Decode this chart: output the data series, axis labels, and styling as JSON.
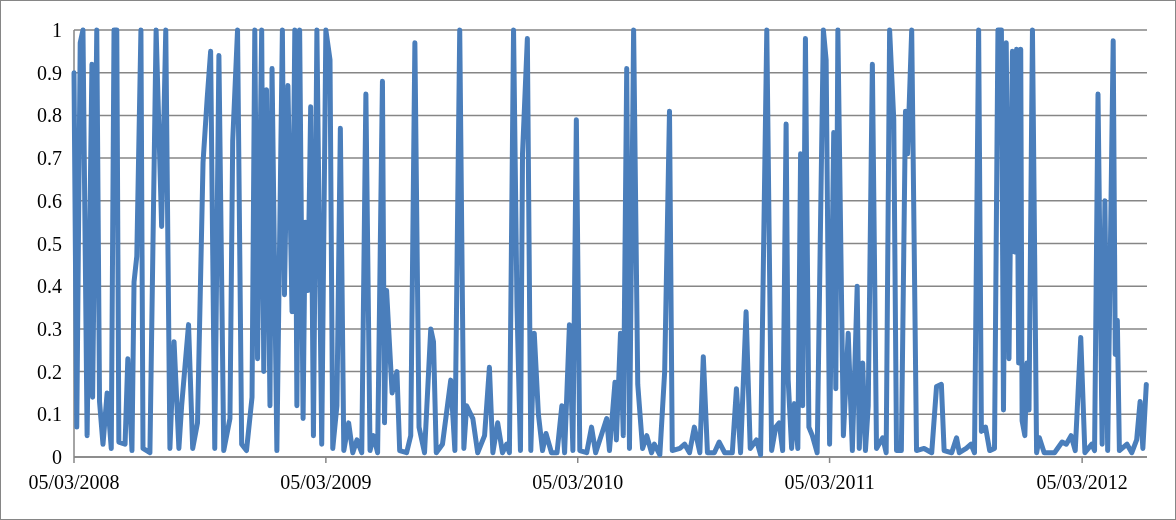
{
  "chart_data": {
    "type": "line",
    "x": [
      "2008-03-05",
      "2008-03-09",
      "2008-03-14",
      "2008-03-18",
      "2008-03-24",
      "2008-03-31",
      "2008-04-01",
      "2008-04-07",
      "2008-04-11",
      "2008-04-16",
      "2008-04-22",
      "2008-04-28",
      "2008-05-02",
      "2008-05-06",
      "2008-05-09",
      "2008-05-18",
      "2008-05-22",
      "2008-05-28",
      "2008-05-31",
      "2008-06-04",
      "2008-06-10",
      "2008-06-13",
      "2008-06-23",
      "2008-07-02",
      "2008-07-10",
      "2008-07-16",
      "2008-07-22",
      "2008-07-28",
      "2008-08-04",
      "2008-08-08",
      "2008-08-18",
      "2008-08-24",
      "2008-08-31",
      "2008-09-08",
      "2008-09-14",
      "2008-09-19",
      "2008-09-25",
      "2008-10-01",
      "2008-10-08",
      "2008-10-17",
      "2008-10-21",
      "2008-10-28",
      "2008-11-03",
      "2008-11-10",
      "2008-11-18",
      "2008-11-22",
      "2008-11-26",
      "2008-12-02",
      "2008-12-05",
      "2008-12-09",
      "2008-12-14",
      "2008-12-17",
      "2008-12-24",
      "2009-01-01",
      "2009-01-04",
      "2009-01-09",
      "2009-01-15",
      "2009-01-19",
      "2009-01-22",
      "2009-01-26",
      "2009-01-31",
      "2009-02-03",
      "2009-02-07",
      "2009-02-11",
      "2009-02-15",
      "2009-02-20",
      "2009-02-27",
      "2009-03-05",
      "2009-03-11",
      "2009-03-15",
      "2009-03-21",
      "2009-03-26",
      "2009-03-31",
      "2009-04-07",
      "2009-04-13",
      "2009-04-19",
      "2009-04-26",
      "2009-05-02",
      "2009-05-08",
      "2009-05-13",
      "2009-05-19",
      "2009-05-26",
      "2009-05-29",
      "2009-06-01",
      "2009-06-09",
      "2009-06-16",
      "2009-06-20",
      "2009-06-30",
      "2009-07-06",
      "2009-07-12",
      "2009-07-18",
      "2009-07-26",
      "2009-08-04",
      "2009-08-08",
      "2009-08-12",
      "2009-08-21",
      "2009-09-02",
      "2009-09-08",
      "2009-09-15",
      "2009-09-21",
      "2009-09-25",
      "2009-10-04",
      "2009-10-11",
      "2009-10-21",
      "2009-10-28",
      "2009-11-02",
      "2009-11-09",
      "2009-11-16",
      "2009-11-22",
      "2009-11-26",
      "2009-12-02",
      "2009-12-07",
      "2009-12-12",
      "2009-12-15",
      "2009-12-22",
      "2009-12-27",
      "2010-01-01",
      "2010-01-07",
      "2010-01-13",
      "2010-01-18",
      "2010-01-26",
      "2010-02-03",
      "2010-02-10",
      "2010-02-14",
      "2010-02-21",
      "2010-02-26",
      "2010-03-03",
      "2010-03-08",
      "2010-03-18",
      "2010-03-25",
      "2010-03-31",
      "2010-04-09",
      "2010-04-16",
      "2010-04-20",
      "2010-04-28",
      "2010-04-30",
      "2010-05-06",
      "2010-05-10",
      "2010-05-15",
      "2010-05-19",
      "2010-05-25",
      "2010-05-31",
      "2010-06-07",
      "2010-06-13",
      "2010-06-20",
      "2010-06-24",
      "2010-07-02",
      "2010-07-09",
      "2010-07-16",
      "2010-07-20",
      "2010-07-31",
      "2010-08-07",
      "2010-08-14",
      "2010-08-21",
      "2010-08-29",
      "2010-09-03",
      "2010-09-09",
      "2010-09-19",
      "2010-09-26",
      "2010-10-04",
      "2010-10-15",
      "2010-10-21",
      "2010-10-27",
      "2010-11-04",
      "2010-11-10",
      "2010-11-19",
      "2010-11-25",
      "2010-12-04",
      "2010-12-11",
      "2010-12-17",
      "2010-12-22",
      "2010-12-27",
      "2011-01-01",
      "2011-01-04",
      "2011-01-09",
      "2011-01-13",
      "2011-01-18",
      "2011-01-22",
      "2011-01-25",
      "2011-01-29",
      "2011-02-03",
      "2011-02-08",
      "2011-02-15",
      "2011-02-24",
      "2011-02-28",
      "2011-03-05",
      "2011-03-11",
      "2011-03-14",
      "2011-03-17",
      "2011-03-25",
      "2011-04-01",
      "2011-04-07",
      "2011-04-14",
      "2011-04-17",
      "2011-04-22",
      "2011-04-26",
      "2011-04-30",
      "2011-05-06",
      "2011-05-12",
      "2011-05-21",
      "2011-05-26",
      "2011-05-31",
      "2011-06-06",
      "2011-06-10",
      "2011-06-17",
      "2011-06-23",
      "2011-06-26",
      "2011-07-02",
      "2011-07-09",
      "2011-07-20",
      "2011-07-31",
      "2011-08-07",
      "2011-08-14",
      "2011-08-18",
      "2011-08-29",
      "2011-09-05",
      "2011-09-09",
      "2011-09-19",
      "2011-09-26",
      "2011-10-01",
      "2011-10-07",
      "2011-10-11",
      "2011-10-17",
      "2011-10-23",
      "2011-10-30",
      "2011-11-04",
      "2011-11-09",
      "2011-11-12",
      "2011-11-16",
      "2011-11-20",
      "2011-11-25",
      "2011-11-28",
      "2011-12-01",
      "2011-12-04",
      "2011-12-07",
      "2011-12-09",
      "2011-12-13",
      "2011-12-16",
      "2011-12-19",
      "2011-12-24",
      "2011-12-30",
      "2012-01-03",
      "2012-01-10",
      "2012-01-25",
      "2012-02-05",
      "2012-02-11",
      "2012-02-18",
      "2012-02-24",
      "2012-03-03",
      "2012-03-09",
      "2012-03-19",
      "2012-03-23",
      "2012-03-28",
      "2012-04-03",
      "2012-04-07",
      "2012-04-11",
      "2012-04-19",
      "2012-04-22",
      "2012-04-25",
      "2012-04-28",
      "2012-05-09",
      "2012-05-16",
      "2012-05-23",
      "2012-05-28",
      "2012-06-01",
      "2012-06-06"
    ],
    "series": [
      {
        "color": "#4a7ebb",
        "values": [
          0.9,
          0.07,
          0.97,
          1.0,
          0.05,
          0.92,
          0.14,
          1.0,
          0.13,
          0.03,
          0.15,
          0.02,
          1.0,
          1.0,
          0.035,
          0.03,
          0.23,
          0.015,
          0.41,
          0.47,
          1.0,
          0.02,
          0.01,
          1.0,
          0.54,
          1.0,
          0.02,
          0.27,
          0.02,
          0.12,
          0.31,
          0.02,
          0.08,
          0.69,
          0.84,
          0.95,
          0.02,
          0.94,
          0.015,
          0.09,
          0.74,
          1.0,
          0.03,
          0.015,
          0.14,
          1.0,
          0.23,
          1.0,
          0.2,
          0.86,
          0.12,
          0.91,
          0.015,
          1.0,
          0.38,
          0.87,
          0.34,
          1.0,
          0.12,
          1.0,
          0.09,
          0.55,
          0.39,
          0.82,
          0.05,
          1.0,
          0.03,
          1.0,
          0.93,
          0.02,
          0.12,
          0.77,
          0.015,
          0.08,
          0.01,
          0.04,
          0.01,
          0.85,
          0.015,
          0.05,
          0.01,
          0.88,
          0.08,
          0.39,
          0.15,
          0.2,
          0.015,
          0.01,
          0.05,
          0.97,
          0.07,
          0.01,
          0.3,
          0.27,
          0.01,
          0.03,
          0.18,
          0.015,
          1.0,
          0.02,
          0.12,
          0.09,
          0.01,
          0.05,
          0.21,
          0.01,
          0.08,
          0.01,
          0.03,
          0.01,
          1.0,
          0.35,
          0.015,
          0.71,
          0.98,
          0.015,
          0.29,
          0.1,
          0.015,
          0.055,
          0.01,
          0.01,
          0.12,
          0.01,
          0.31,
          0.015,
          0.79,
          0.015,
          0.01,
          0.07,
          0.01,
          0.055,
          0.09,
          0.015,
          0.175,
          0.04,
          0.29,
          0.05,
          0.91,
          0.02,
          1.0,
          0.17,
          0.02,
          0.05,
          0.01,
          0.03,
          0.005,
          0.2,
          0.81,
          0.015,
          0.02,
          0.03,
          0.01,
          0.07,
          0.01,
          0.235,
          0.01,
          0.01,
          0.035,
          0.01,
          0.01,
          0.16,
          0.01,
          0.34,
          0.02,
          0.04,
          0.005,
          1.0,
          0.015,
          0.07,
          0.08,
          0.015,
          0.78,
          0.18,
          0.02,
          0.125,
          0.02,
          0.71,
          0.12,
          0.98,
          0.07,
          0.05,
          0.01,
          1.0,
          0.93,
          0.03,
          0.76,
          0.16,
          1.0,
          0.05,
          0.29,
          0.015,
          0.4,
          0.02,
          0.22,
          0.015,
          0.12,
          0.92,
          0.02,
          0.045,
          0.01,
          1.0,
          0.79,
          0.015,
          0.015,
          0.81,
          0.71,
          1.0,
          0.015,
          0.02,
          0.01,
          0.165,
          0.17,
          0.015,
          0.01,
          0.045,
          0.01,
          0.02,
          0.03,
          0.01,
          1.0,
          0.06,
          0.07,
          0.015,
          0.02,
          1.0,
          1.0,
          0.11,
          0.97,
          0.23,
          0.95,
          0.48,
          0.955,
          0.22,
          0.955,
          0.085,
          0.05,
          0.22,
          0.11,
          1.0,
          0.01,
          0.045,
          0.01,
          0.01,
          0.035,
          0.03,
          0.05,
          0.015,
          0.28,
          0.01,
          0.03,
          0.015,
          0.85,
          0.03,
          0.6,
          0.015,
          0.975,
          0.24,
          0.32,
          0.015,
          0.03,
          0.01,
          0.04,
          0.13,
          0.02,
          0.17
        ]
      }
    ],
    "xlim": [
      "2008-03-05",
      "2012-06-07"
    ],
    "xticks": [
      {
        "value": "2008-03-05",
        "label": "05/03/2008"
      },
      {
        "value": "2009-03-05",
        "label": "05/03/2009"
      },
      {
        "value": "2010-03-05",
        "label": "05/03/2010"
      },
      {
        "value": "2011-03-05",
        "label": "05/03/2011"
      },
      {
        "value": "2012-03-05",
        "label": "05/03/2012"
      }
    ],
    "ylim": [
      0,
      1
    ],
    "yticks": [
      0,
      0.1,
      0.2,
      0.3,
      0.4,
      0.5,
      0.6,
      0.7,
      0.8,
      0.9,
      1
    ],
    "grid": "y",
    "marker": "none",
    "line_style": "solid"
  }
}
